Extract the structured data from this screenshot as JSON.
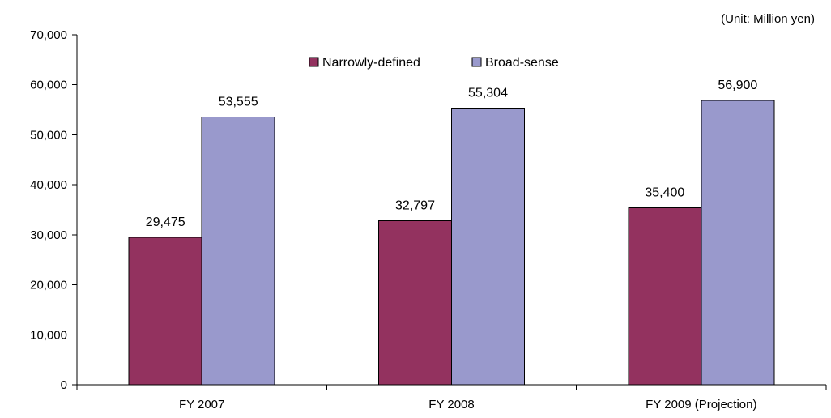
{
  "chart_data": {
    "type": "bar",
    "unit_note": "(Unit: Million yen)",
    "categories": [
      "FY 2007",
      "FY 2008",
      "FY 2009 (Projection)"
    ],
    "series": [
      {
        "name": "Narrowly-defined",
        "color": "#93325f",
        "values": [
          29475,
          32797,
          35400
        ]
      },
      {
        "name": "Broad-sense",
        "color": "#9999cc",
        "values": [
          53555,
          55304,
          56900
        ]
      }
    ],
    "ylim": [
      0,
      70000
    ],
    "yticks": [
      0,
      10000,
      20000,
      30000,
      40000,
      50000,
      60000,
      70000
    ],
    "ytick_labels": [
      "0",
      "10,000",
      "20,000",
      "30,000",
      "40,000",
      "50,000",
      "60,000",
      "70,000"
    ],
    "data_labels": [
      [
        "29,475",
        "32,797",
        "35,400"
      ],
      [
        "53,555",
        "55,304",
        "56,900"
      ]
    ],
    "legend_position": "top-center",
    "grid": false
  }
}
